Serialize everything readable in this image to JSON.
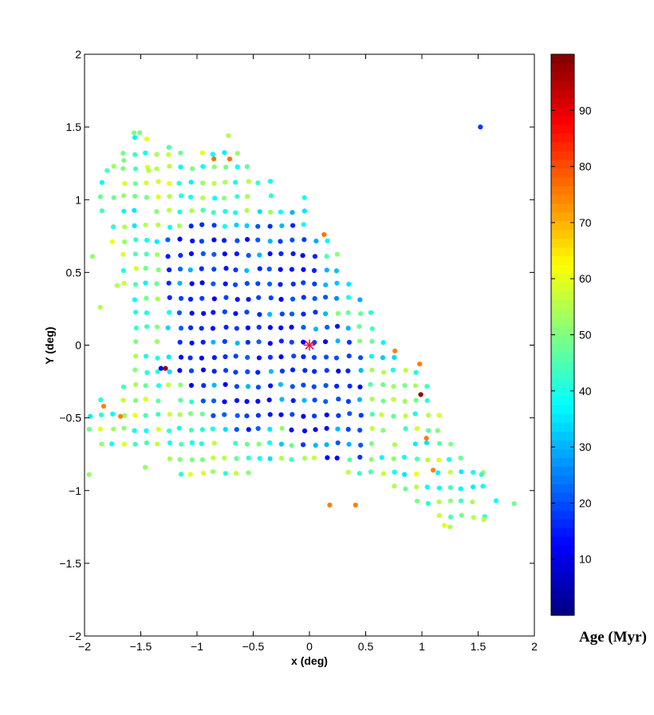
{
  "chart_data": {
    "type": "scatter",
    "xlabel": "x (deg)",
    "ylabel": "Y (deg)",
    "xlim": [
      -2,
      2
    ],
    "ylim": [
      -2,
      2
    ],
    "xticks": [
      "−2",
      "−1.5",
      "−1",
      "−0.5",
      "0",
      "0.5",
      "1",
      "1.5",
      "2"
    ],
    "yticks": [
      "−2",
      "−1.5",
      "−1",
      "−0.5",
      "0",
      "0.5",
      "1",
      "1.5",
      "2"
    ],
    "grid": false,
    "colorbar": {
      "label": "Age (Myr)",
      "range": [
        0,
        100
      ],
      "ticks": [
        "10",
        "20",
        "30",
        "40",
        "50",
        "60",
        "70",
        "80",
        "90"
      ],
      "colormap": "jet"
    },
    "center_marker": {
      "x": 0,
      "y": 0,
      "symbol": "*",
      "color": "#e6194b"
    },
    "points": [
      [
        1.52,
        1.5,
        18
      ],
      [
        -0.85,
        1.28,
        76
      ],
      [
        -0.71,
        1.28,
        76
      ],
      [
        -0.72,
        1.44,
        55
      ],
      [
        0.13,
        0.76,
        76
      ],
      [
        0.76,
        -0.04,
        75
      ],
      [
        0.98,
        -0.13,
        75
      ],
      [
        1.1,
        -0.86,
        75
      ],
      [
        1.04,
        -0.64,
        75
      ],
      [
        0.18,
        -1.1,
        75
      ],
      [
        0.41,
        -1.1,
        75
      ],
      [
        -1.83,
        -0.42,
        75
      ],
      [
        -1.68,
        -0.49,
        75
      ],
      [
        -1.28,
        -0.16,
        98
      ],
      [
        0.99,
        -0.34,
        98
      ],
      [
        -1.32,
        -0.16,
        12
      ],
      [
        -1.93,
        0.61,
        52
      ],
      [
        -1.96,
        -0.89,
        52
      ],
      [
        -1.56,
        1.46,
        50
      ],
      [
        -1.51,
        1.46,
        50
      ],
      [
        -1.8,
        1.2,
        45
      ],
      [
        -1.65,
        1.27,
        50
      ],
      [
        -1.43,
        1.2,
        55
      ],
      [
        -1.25,
        1.36,
        45
      ],
      [
        -1.46,
        -0.84,
        52
      ],
      [
        -1.71,
        0.41,
        55
      ],
      [
        -1.86,
        0.26,
        55
      ],
      [
        1.66,
        -1.07,
        38
      ],
      [
        1.82,
        -1.09,
        48
      ],
      [
        1.55,
        -1.2,
        55
      ],
      [
        1.53,
        -0.89,
        42
      ],
      [
        1.25,
        -1.25,
        55
      ],
      [
        1.2,
        -1.24,
        60
      ]
    ]
  }
}
